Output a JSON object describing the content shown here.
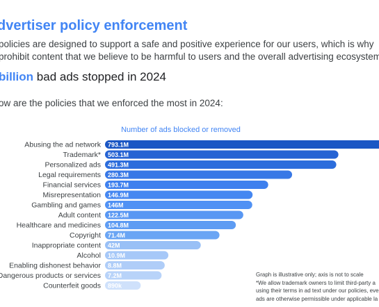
{
  "header": {
    "title": "dvertiser policy enforcement",
    "intro_line1": "policies are designed to support a safe and positive experience for our users, which is why",
    "intro_line2": "prohibit content that we believe to be harmful to users and the overall advertising ecosystem."
  },
  "stat": {
    "highlight": "billion",
    "text": "bad ads stopped in 2024"
  },
  "question": "ow are the policies that we enforced the most in 2024:",
  "chart_data": {
    "type": "bar",
    "orientation": "horizontal",
    "title": "Number of ads blocked or removed",
    "xlabel": "",
    "ylabel": "",
    "categories": [
      "Abusing the ad network",
      "Trademark*",
      "Personalized ads",
      "Legal requirements",
      "Financial services",
      "Misrepresentation",
      "Gambling and games",
      "Adult content",
      "Healthcare and medicines",
      "Copyright",
      "Inappropriate content",
      "Alcohol",
      "Enabling dishonest behavior",
      "Dangerous products or services",
      "Counterfeit goods"
    ],
    "values": [
      793.1,
      503.1,
      491.3,
      280.3,
      193.7,
      146.9,
      146,
      122.5,
      104.8,
      71.4,
      42,
      10.9,
      8.8,
      7.2,
      0.89
    ],
    "value_labels": [
      "793.1M",
      "503.1M",
      "491.3M",
      "280.3M",
      "193.7M",
      "146.9M",
      "146M",
      "122.5M",
      "104.8M",
      "71.4M",
      "42M",
      "10.9M",
      "8.8M",
      "7.2M",
      "890k"
    ],
    "units": "M",
    "scale": "illustrative (not to scale)",
    "colors": [
      "#1a56c4",
      "#2563d3",
      "#2c6ddc",
      "#3878e6",
      "#3e80ee",
      "#4587f1",
      "#5091f4",
      "#5897f3",
      "#5e9cf3",
      "#6aa5f4",
      "#99c0f6",
      "#a6c8f8",
      "#afcdf8",
      "#b8d3f9",
      "#cfe1fb"
    ]
  },
  "notes": {
    "line1": "Graph is illustrative only; axis is not to scale",
    "line2": "*We allow trademark owners to limit third-party a",
    "line3": "using their terms in ad text under our policies, eve",
    "line4": "ads are otherwise permissible under applicable la"
  }
}
